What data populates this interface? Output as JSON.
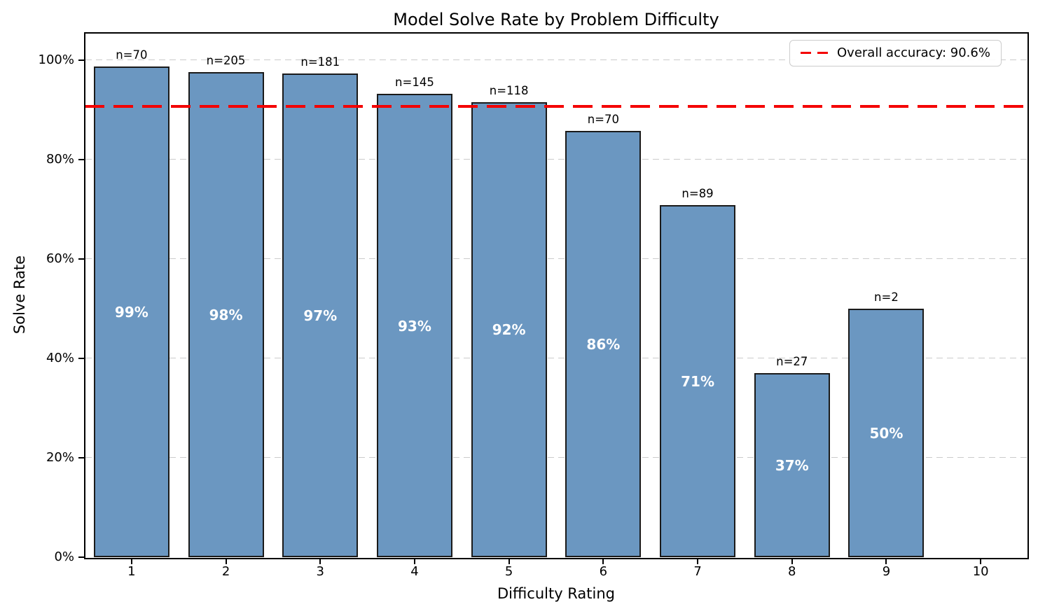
{
  "chart_data": {
    "type": "bar",
    "title": "Model Solve Rate by Problem Difficulty",
    "xlabel": "Difficulty Rating",
    "ylabel": "Solve Rate",
    "categories": [
      "1",
      "2",
      "3",
      "4",
      "5",
      "6",
      "7",
      "8",
      "9",
      "10"
    ],
    "values": [
      98.6,
      97.6,
      97.2,
      93.1,
      91.5,
      85.7,
      70.8,
      37.0,
      50.0,
      null
    ],
    "bar_value_labels": [
      "99%",
      "98%",
      "97%",
      "93%",
      "92%",
      "86%",
      "71%",
      "37%",
      "50%",
      null
    ],
    "count_labels": [
      "n=70",
      "n=205",
      "n=181",
      "n=145",
      "n=118",
      "n=70",
      "n=89",
      "n=27",
      "n=2",
      null
    ],
    "y_axis": {
      "tick_labels": [
        "0%",
        "20%",
        "40%",
        "60%",
        "80%",
        "100%"
      ],
      "tick_values": [
        0,
        20,
        40,
        60,
        80,
        100
      ],
      "range": [
        0,
        105.5
      ]
    },
    "grid": {
      "axis": "y",
      "style": "dashed",
      "color": "#cbcbcb"
    },
    "reference_line": {
      "value": 90.6,
      "style": "dashed",
      "color": "#f40000"
    },
    "legend": {
      "position": "upper-right",
      "items": [
        {
          "label": "Overall accuracy: 90.6%",
          "marker": "red-dashed-line"
        }
      ]
    },
    "colors": {
      "bar_fill": "#6b97c1",
      "bar_edge": "#1a1a1a",
      "background": "#ffffff",
      "text": "#000000"
    }
  }
}
